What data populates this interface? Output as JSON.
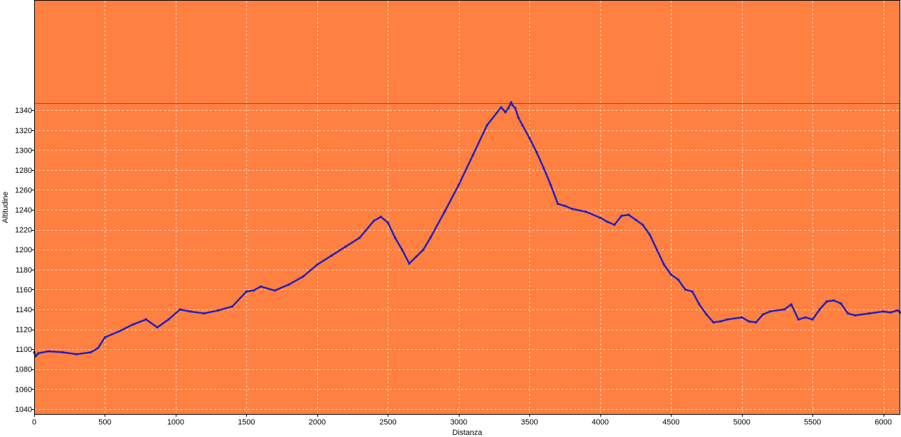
{
  "chart_data": {
    "type": "line",
    "title": "",
    "xlabel": "Distanza",
    "ylabel": "Altitudine",
    "xlim": [
      0,
      6120
    ],
    "ylim": [
      1035,
      1450
    ],
    "x_ticks": [
      0,
      500,
      1000,
      1500,
      2000,
      2500,
      3000,
      3500,
      4000,
      4500,
      5000,
      5500,
      6000
    ],
    "y_ticks": [
      1040,
      1060,
      1080,
      1100,
      1120,
      1140,
      1160,
      1180,
      1200,
      1220,
      1240,
      1260,
      1280,
      1300,
      1320,
      1340
    ],
    "grid": true,
    "max_line": 1347,
    "colors": {
      "background": "#ff8040",
      "grid": "#ffd7bd",
      "line": "#1f1fbf",
      "max_line": "#e8221a"
    },
    "series": [
      {
        "x": [
          0,
          10,
          30,
          100,
          200,
          300,
          400,
          450,
          500,
          600,
          700,
          790,
          870,
          950,
          1030,
          1100,
          1200,
          1300,
          1400,
          1500,
          1550,
          1600,
          1700,
          1800,
          1900,
          2000,
          2100,
          2200,
          2300,
          2400,
          2450,
          2500,
          2550,
          2600,
          2650,
          2700,
          2750,
          2800,
          2900,
          3000,
          3100,
          3200,
          3300,
          3330,
          3350,
          3370,
          3380,
          3400,
          3420,
          3450,
          3500,
          3550,
          3600,
          3650,
          3700,
          3750,
          3800,
          3900,
          4000,
          4050,
          4100,
          4150,
          4200,
          4250,
          4300,
          4350,
          4400,
          4450,
          4500,
          4550,
          4600,
          4650,
          4700,
          4750,
          4800,
          4850,
          4900,
          5000,
          5050,
          5100,
          5150,
          5200,
          5300,
          5350,
          5400,
          5450,
          5500,
          5550,
          5600,
          5650,
          5700,
          5750,
          5800,
          5900,
          6000,
          6050,
          6100,
          6120
        ],
        "y": [
          1097,
          1093,
          1096,
          1098,
          1097,
          1095,
          1097,
          1101,
          1112,
          1118,
          1125,
          1130,
          1122,
          1130,
          1140,
          1138,
          1136,
          1139,
          1143,
          1158,
          1159,
          1163,
          1159,
          1165,
          1173,
          1185,
          1194,
          1203,
          1212,
          1229,
          1233,
          1227,
          1212,
          1200,
          1186,
          1193,
          1200,
          1212,
          1238,
          1265,
          1295,
          1325,
          1343,
          1338,
          1342,
          1348,
          1345,
          1342,
          1333,
          1325,
          1312,
          1298,
          1282,
          1265,
          1246,
          1244,
          1241,
          1238,
          1232,
          1228,
          1225,
          1234,
          1235,
          1230,
          1225,
          1215,
          1200,
          1185,
          1175,
          1170,
          1160,
          1158,
          1145,
          1135,
          1127,
          1128,
          1130,
          1132,
          1128,
          1127,
          1135,
          1138,
          1140,
          1145,
          1130,
          1132,
          1130,
          1140,
          1148,
          1149,
          1146,
          1136,
          1134,
          1136,
          1138,
          1137,
          1139,
          1137
        ]
      }
    ]
  }
}
